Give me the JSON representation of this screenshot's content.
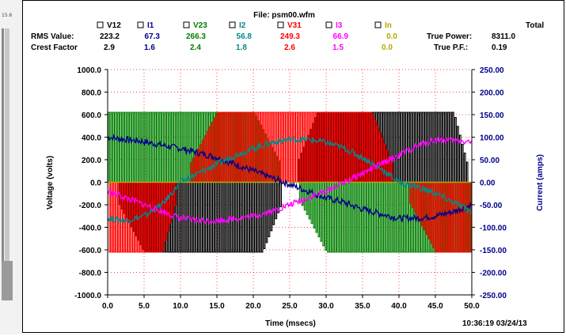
{
  "file_label": "File: psm00.wfm",
  "timestamp": "10:36:19 03/24/13",
  "rows": {
    "rms_label": "RMS Value:",
    "crest_label": "Crest Factor",
    "total_label": "Total",
    "true_power_label": "True Power:",
    "true_power_value": "8311.0",
    "true_pf_label": "True P.F.:",
    "true_pf_value": "0.19"
  },
  "channels": [
    {
      "name": "V12",
      "rms": "223.2",
      "crest": "2.9",
      "color": "#000000"
    },
    {
      "name": "I1",
      "rms": "67.3",
      "crest": "1.6",
      "color": "#00008b"
    },
    {
      "name": "V23",
      "rms": "266.3",
      "crest": "2.4",
      "color": "#008000"
    },
    {
      "name": "I2",
      "rms": "56.8",
      "crest": "1.8",
      "color": "#008b8b"
    },
    {
      "name": "V31",
      "rms": "249.3",
      "crest": "2.6",
      "color": "#ff0000"
    },
    {
      "name": "I3",
      "rms": "66.9",
      "crest": "1.5",
      "color": "#ff00ff"
    },
    {
      "name": "In",
      "rms": "0.0",
      "crest": "0.0",
      "color": "#b8a800"
    }
  ],
  "chart_data": {
    "type": "line",
    "xlabel": "Time (msecs)",
    "ylabel": "Voltage (volts)",
    "y2label": "Current (amps)",
    "xlim": [
      0,
      50
    ],
    "ylim": [
      -1000,
      1000
    ],
    "y2lim": [
      -250,
      250
    ],
    "x_ticks": [
      "0.0",
      "5.0",
      "10.0",
      "15.0",
      "20.0",
      "25.0",
      "30.0",
      "35.0",
      "40.0",
      "45.0",
      "50.0"
    ],
    "y_ticks": [
      "1000.0",
      "800.0",
      "600.0",
      "400.0",
      "200.0",
      "0.0",
      "-200.0",
      "-400.0",
      "-600.0",
      "-800.0",
      "-1000.0"
    ],
    "y2_ticks": [
      "250.00",
      "200.00",
      "150.00",
      "100.00",
      "50.00",
      "0.00",
      "-50.00",
      "-100.00",
      "-150.00",
      "-200.00",
      "-250.00"
    ],
    "grid": "dotted red",
    "voltage_series": [
      {
        "name": "V12",
        "axis": "left",
        "color": "#000000",
        "x": [
          0,
          5,
          10,
          15,
          20,
          25,
          30,
          35,
          40,
          45,
          50
        ],
        "y": [
          0,
          -300,
          -600,
          -600,
          -400,
          0,
          400,
          600,
          600,
          600,
          0
        ]
      },
      {
        "name": "V23",
        "axis": "left",
        "color": "#008000",
        "x": [
          0,
          5,
          10,
          15,
          20,
          25,
          30,
          35,
          40,
          45,
          50
        ],
        "y": [
          600,
          600,
          600,
          500,
          300,
          0,
          -300,
          -500,
          -600,
          -600,
          -600
        ]
      },
      {
        "name": "V31",
        "axis": "left",
        "color": "#ff0000",
        "x": [
          0,
          5,
          10,
          15,
          20,
          25,
          30,
          35,
          40,
          45,
          50
        ],
        "y": [
          -600,
          -600,
          0,
          300,
          600,
          600,
          600,
          400,
          0,
          -300,
          -600
        ]
      },
      {
        "name": "In",
        "axis": "left",
        "color": "#b8a800",
        "x": [
          0,
          50
        ],
        "y": [
          0,
          0
        ]
      }
    ],
    "current_series": [
      {
        "name": "I1",
        "axis": "right",
        "color": "#00008b",
        "x": [
          0,
          2.5,
          5,
          7.5,
          10,
          12.5,
          15,
          17.5,
          20,
          22.5,
          25,
          27.5,
          30,
          32.5,
          35,
          37.5,
          40,
          42.5,
          45,
          47.5,
          50
        ],
        "y": [
          100,
          95,
          90,
          82,
          75,
          65,
          55,
          40,
          25,
          10,
          -5,
          -20,
          -35,
          -45,
          -60,
          -70,
          -80,
          -80,
          -75,
          -65,
          -50
        ]
      },
      {
        "name": "I2",
        "axis": "right",
        "color": "#008b8b",
        "x": [
          0,
          2.5,
          5,
          7.5,
          10,
          12.5,
          15,
          17.5,
          20,
          22.5,
          25,
          27.5,
          30,
          32.5,
          35,
          37.5,
          40,
          42.5,
          45,
          47.5,
          50
        ],
        "y": [
          -80,
          -85,
          -75,
          -50,
          0,
          20,
          40,
          60,
          75,
          88,
          95,
          95,
          88,
          75,
          55,
          30,
          0,
          -10,
          -25,
          -45,
          -65
        ]
      },
      {
        "name": "I3",
        "axis": "right",
        "color": "#ff00ff",
        "x": [
          0,
          2.5,
          5,
          7.5,
          10,
          12.5,
          15,
          17.5,
          20,
          22.5,
          25,
          27.5,
          30,
          32.5,
          35,
          37.5,
          40,
          42.5,
          45,
          47.5,
          50
        ],
        "y": [
          -20,
          -35,
          -50,
          -65,
          -80,
          -85,
          -85,
          -80,
          -75,
          -65,
          -50,
          -35,
          -20,
          0,
          20,
          40,
          60,
          80,
          95,
          92,
          90
        ]
      }
    ]
  }
}
